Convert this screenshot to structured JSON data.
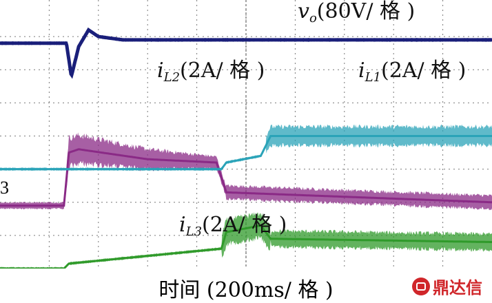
{
  "chart_data": {
    "type": "line",
    "title": "",
    "xlabel": "时间 (200ms/ 格 )",
    "ylabel": "",
    "grid": true,
    "grid_divisions": {
      "x": 10,
      "y": 8
    },
    "series": [
      {
        "name": "vo(80V/ 格 )",
        "symbol": "v",
        "sub": "o",
        "unit": "(80V/ 格 )",
        "color": "#1a1f7a",
        "levels": [
          [
            0,
            6.8
          ],
          [
            1.35,
            6.8
          ],
          [
            1.45,
            5.8
          ],
          [
            1.6,
            6.7
          ],
          [
            1.8,
            7.2
          ],
          [
            2.0,
            7.0
          ],
          [
            2.5,
            6.9
          ],
          [
            10,
            6.9
          ]
        ]
      },
      {
        "name": "iL2(2A/ 格 )",
        "symbol": "i",
        "sub": "L2",
        "unit": "(2A/ 格 )",
        "color": "#8a2a86",
        "levels": [
          [
            0,
            1.9
          ],
          [
            1.3,
            1.9
          ],
          [
            1.4,
            3.5
          ],
          [
            1.6,
            3.6
          ],
          [
            3.0,
            3.3
          ],
          [
            4.4,
            3.2
          ],
          [
            4.6,
            2.3
          ],
          [
            10,
            2.0
          ]
        ]
      },
      {
        "name": "iL1(2A/ 格 )",
        "symbol": "i",
        "sub": "L1",
        "unit": "(2A/ 格 )",
        "color": "#2aa3b8",
        "levels": [
          [
            0,
            3.0
          ],
          [
            4.5,
            3.0
          ],
          [
            4.6,
            3.2
          ],
          [
            5.3,
            3.4
          ],
          [
            5.5,
            4.0
          ],
          [
            10,
            4.0
          ]
        ]
      },
      {
        "name": "iL3(2A/ 格 )",
        "symbol": "i",
        "sub": "L3",
        "unit": "(2A/ 格 )",
        "color": "#2f9a2a",
        "levels": [
          [
            0,
            0.0
          ],
          [
            1.3,
            0.0
          ],
          [
            1.4,
            0.15
          ],
          [
            4.5,
            0.6
          ],
          [
            4.6,
            1.1
          ],
          [
            5.3,
            1.3
          ],
          [
            5.5,
            0.9
          ],
          [
            10,
            0.8
          ]
        ]
      }
    ],
    "channel_marker": "3"
  },
  "watermark": "鼎达信"
}
